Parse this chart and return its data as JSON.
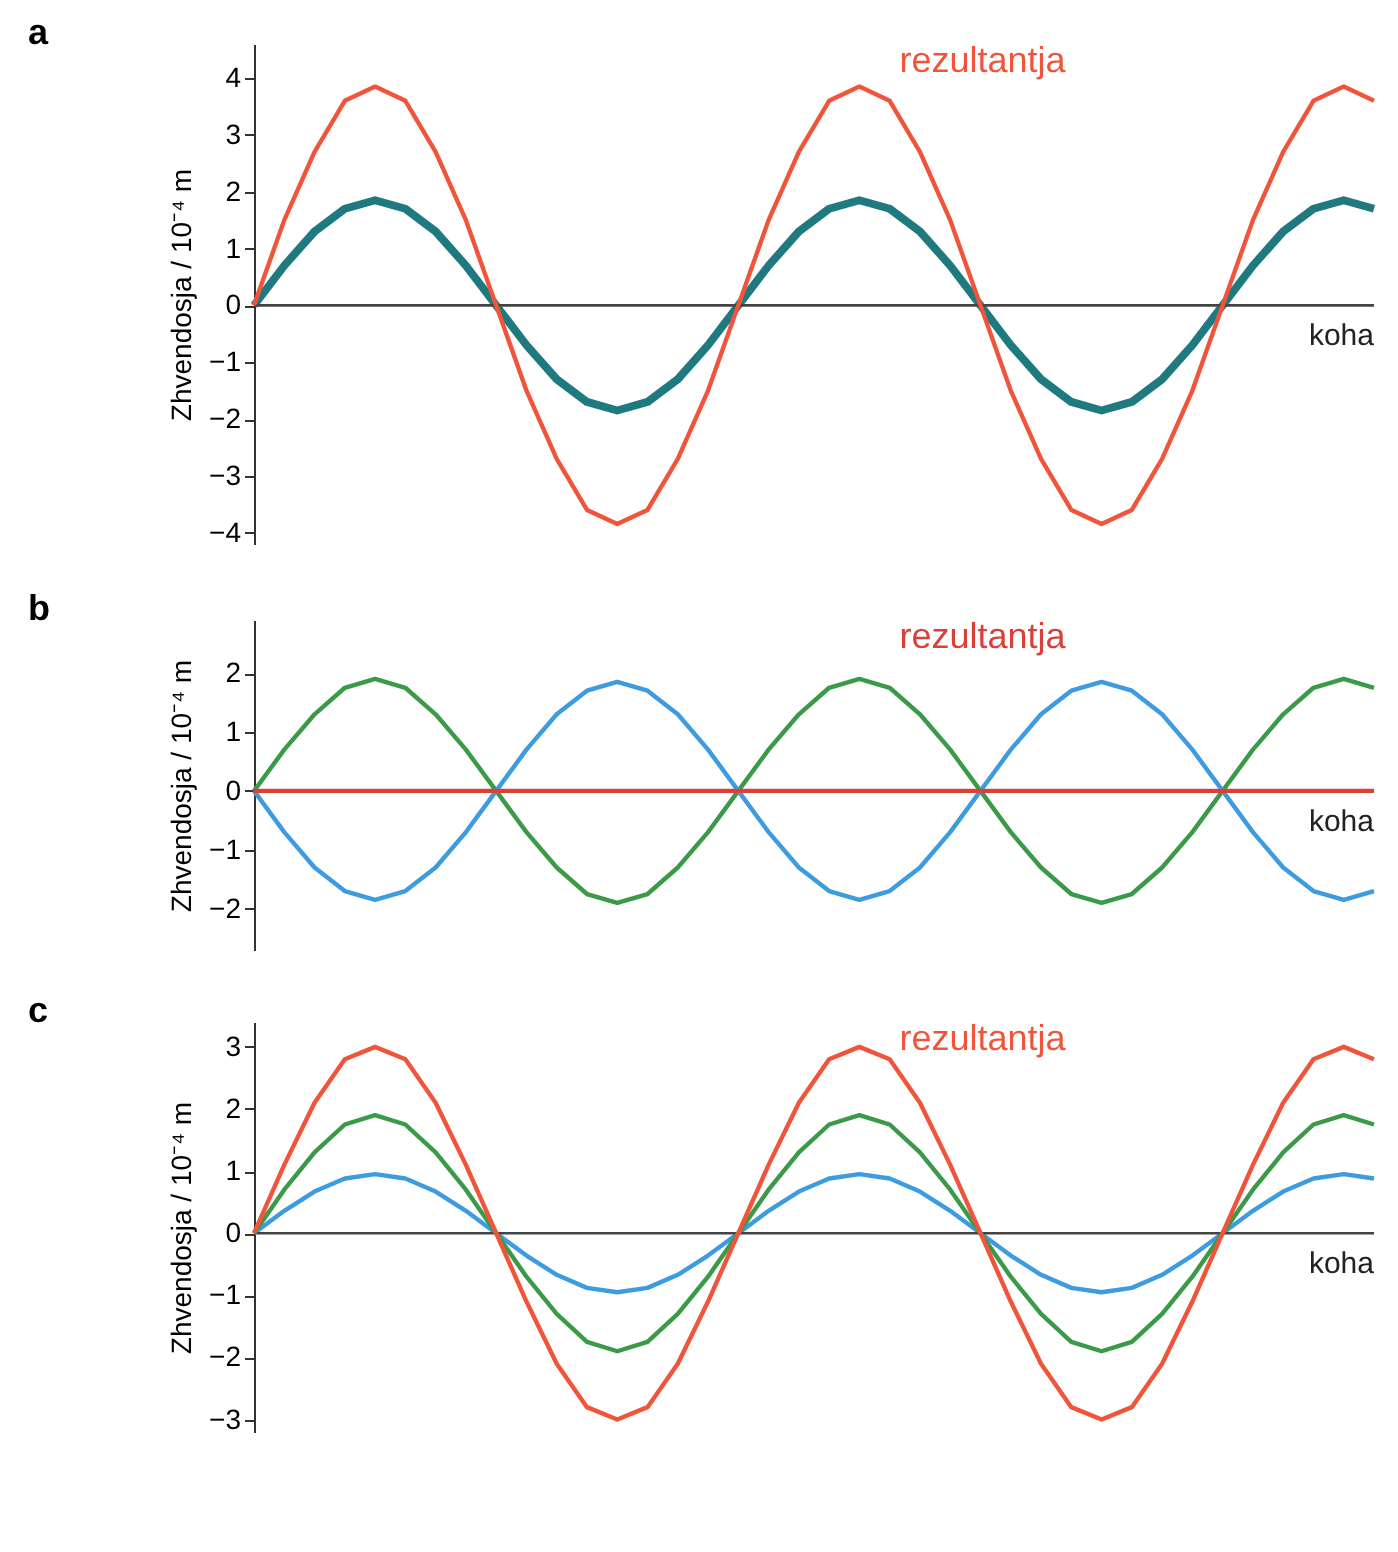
{
  "chart_data": [
    {
      "type": "line",
      "title": "a",
      "xlabel": "koha",
      "ylabel": "Zhvendosja / 10⁻⁴ m",
      "categories": [
        null,
        null,
        null,
        null,
        null,
        null,
        null,
        null,
        null,
        null,
        null,
        null,
        null,
        null,
        null,
        null,
        null,
        null,
        null,
        null,
        null,
        null,
        null,
        null,
        null,
        null,
        null,
        null,
        null,
        null,
        null,
        null,
        null,
        null,
        null,
        null,
        null,
        null
      ],
      "ylim": [
        -4.2,
        4.6
      ],
      "yticks": [
        -4,
        -3,
        -2,
        -1,
        0,
        1,
        2,
        3,
        4
      ],
      "tick_labels": "y",
      "series": [
        {
          "color": "#1f7a80",
          "values": [
            0,
            0.7,
            1.3,
            1.7,
            1.85,
            1.7,
            1.3,
            0.7,
            0,
            -0.7,
            -1.3,
            -1.7,
            -1.85,
            -1.7,
            -1.3,
            -0.7,
            0,
            0.7,
            1.3,
            1.7,
            1.85,
            1.7,
            1.3,
            0.7,
            0,
            -0.7,
            -1.3,
            -1.7,
            -1.85,
            -1.7,
            -1.3,
            -0.7,
            0,
            0.7,
            1.3,
            1.7,
            1.85,
            1.7
          ]
        },
        {
          "name": "rezultantja",
          "color": "#f0553c",
          "values": [
            0,
            1.5,
            2.7,
            3.6,
            3.85,
            3.6,
            2.7,
            1.5,
            0,
            -1.5,
            -2.7,
            -3.6,
            -3.85,
            -3.6,
            -2.7,
            -1.5,
            0,
            1.5,
            2.7,
            3.6,
            3.85,
            3.6,
            2.7,
            1.5,
            0,
            -1.5,
            -2.7,
            -3.6,
            -3.85,
            -3.6,
            -2.7,
            -1.5,
            0,
            1.5,
            2.7,
            3.6,
            3.85,
            3.6
          ]
        }
      ]
    },
    {
      "type": "line",
      "title": "b",
      "xlabel": "koha",
      "ylabel": "Zhvendosja / 10⁻⁴ m",
      "categories": [
        null,
        null,
        null,
        null,
        null,
        null,
        null,
        null,
        null,
        null,
        null,
        null,
        null,
        null,
        null,
        null,
        null,
        null,
        null,
        null,
        null,
        null,
        null,
        null,
        null,
        null,
        null,
        null,
        null,
        null,
        null,
        null,
        null,
        null,
        null,
        null,
        null,
        null
      ],
      "ylim": [
        -2.7,
        2.9
      ],
      "yticks": [
        -2,
        -1,
        0,
        1,
        2
      ],
      "tick_labels": "y",
      "series": [
        {
          "color": "#3a9a48",
          "values": [
            0,
            0.7,
            1.3,
            1.75,
            1.9,
            1.75,
            1.3,
            0.7,
            0,
            -0.7,
            -1.3,
            -1.75,
            -1.9,
            -1.75,
            -1.3,
            -0.7,
            0,
            0.7,
            1.3,
            1.75,
            1.9,
            1.75,
            1.3,
            0.7,
            0,
            -0.7,
            -1.3,
            -1.75,
            -1.9,
            -1.75,
            -1.3,
            -0.7,
            0,
            0.7,
            1.3,
            1.75,
            1.9,
            1.75
          ]
        },
        {
          "color": "#3d9be0",
          "values": [
            0,
            -0.7,
            -1.3,
            -1.7,
            -1.85,
            -1.7,
            -1.3,
            -0.7,
            0,
            0.7,
            1.3,
            1.7,
            1.85,
            1.7,
            1.3,
            0.7,
            0,
            -0.7,
            -1.3,
            -1.7,
            -1.85,
            -1.7,
            -1.3,
            -0.7,
            0,
            0.7,
            1.3,
            1.7,
            1.85,
            1.7,
            1.3,
            0.7,
            0,
            -0.7,
            -1.3,
            -1.7,
            -1.85,
            -1.7
          ]
        },
        {
          "name": "rezultantja",
          "color": "#d9403a",
          "values": [
            0,
            0,
            0,
            0,
            0,
            0,
            0,
            0,
            0,
            0,
            0,
            0,
            0,
            0,
            0,
            0,
            0,
            0,
            0,
            0,
            0,
            0,
            0,
            0,
            0,
            0,
            0,
            0,
            0,
            0,
            0,
            0,
            0,
            0,
            0,
            0,
            0,
            0
          ]
        }
      ]
    },
    {
      "type": "line",
      "title": "c",
      "xlabel": "koha",
      "ylabel": "Zhvendosja / 10⁻⁴ m",
      "categories": [
        null,
        null,
        null,
        null,
        null,
        null,
        null,
        null,
        null,
        null,
        null,
        null,
        null,
        null,
        null,
        null,
        null,
        null,
        null,
        null,
        null,
        null,
        null,
        null,
        null,
        null,
        null,
        null,
        null,
        null,
        null,
        null,
        null,
        null,
        null,
        null,
        null,
        null
      ],
      "ylim": [
        -3.2,
        3.4
      ],
      "yticks": [
        -3,
        -2,
        -1,
        0,
        1,
        2,
        3
      ],
      "tick_labels": "y",
      "series": [
        {
          "color": "#3d9be0",
          "values": [
            0,
            0.36,
            0.67,
            0.88,
            0.95,
            0.88,
            0.67,
            0.36,
            0,
            -0.36,
            -0.67,
            -0.88,
            -0.95,
            -0.88,
            -0.67,
            -0.36,
            0,
            0.36,
            0.67,
            0.88,
            0.95,
            0.88,
            0.67,
            0.36,
            0,
            -0.36,
            -0.67,
            -0.88,
            -0.95,
            -0.88,
            -0.67,
            -0.36,
            0,
            0.36,
            0.67,
            0.88,
            0.95,
            0.88
          ]
        },
        {
          "color": "#3a9a48",
          "values": [
            0,
            0.7,
            1.3,
            1.75,
            1.9,
            1.75,
            1.3,
            0.7,
            0,
            -0.7,
            -1.3,
            -1.75,
            -1.9,
            -1.75,
            -1.3,
            -0.7,
            0,
            0.7,
            1.3,
            1.75,
            1.9,
            1.75,
            1.3,
            0.7,
            0,
            -0.7,
            -1.3,
            -1.75,
            -1.9,
            -1.75,
            -1.3,
            -0.7,
            0,
            0.7,
            1.3,
            1.75,
            1.9,
            1.75
          ]
        },
        {
          "name": "rezultantja",
          "color": "#f0553c",
          "values": [
            0,
            1.1,
            2.1,
            2.8,
            3,
            2.8,
            2.1,
            1.1,
            0,
            -1.1,
            -2.1,
            -2.8,
            -3,
            -2.8,
            -2.1,
            -1.1,
            0,
            1.1,
            2.1,
            2.8,
            3,
            2.8,
            2.1,
            1.1,
            0,
            -1.1,
            -2.1,
            -2.8,
            -3,
            -2.8,
            -2.1,
            -1.1,
            0,
            1.1,
            2.1,
            2.8,
            3,
            2.8
          ]
        }
      ]
    }
  ]
}
